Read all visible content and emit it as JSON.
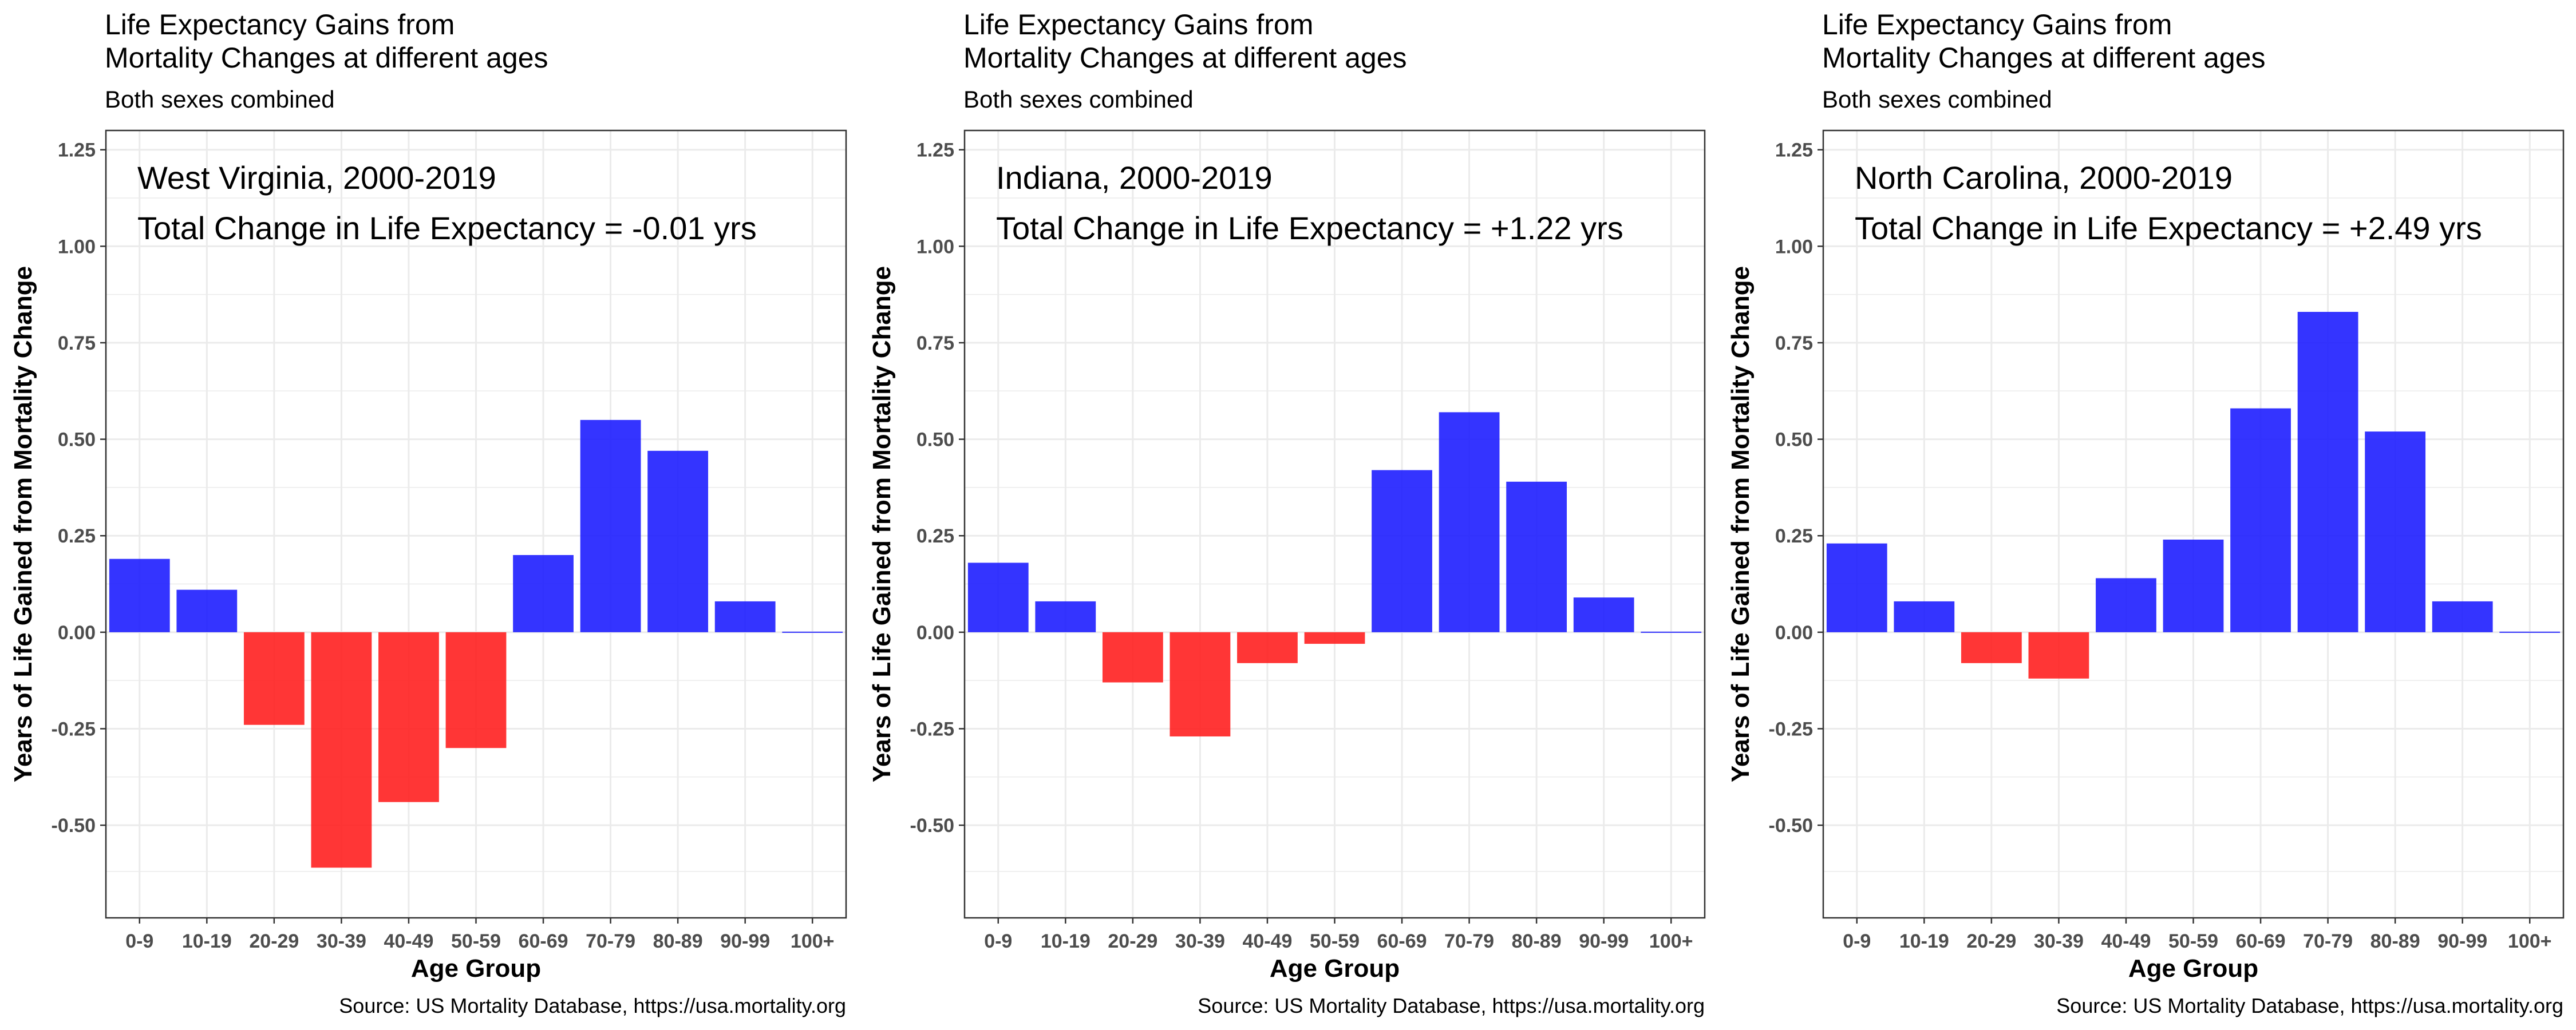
{
  "chart_data": [
    {
      "type": "bar",
      "title": "Life Expectancy Gains from\nMortality Changes at different ages",
      "subtitle": "Both sexes combined",
      "annotation": [
        "West Virginia, 2000-2019",
        "Total Change in Life Expectancy = -0.01 yrs"
      ],
      "xlabel": "Age Group",
      "ylabel": "Years of Life Gained from Mortality Change",
      "caption": "Source: US Mortality Database, https://usa.mortality.org",
      "categories": [
        "0-9",
        "10-19",
        "20-29",
        "30-39",
        "40-49",
        "50-59",
        "60-69",
        "70-79",
        "80-89",
        "90-99",
        "100+"
      ],
      "values": [
        0.19,
        0.11,
        -0.24,
        -0.61,
        -0.44,
        -0.3,
        0.2,
        0.55,
        0.47,
        0.08,
        0.0
      ],
      "ylim": [
        -0.74,
        1.3
      ],
      "yticks": [
        -0.5,
        -0.25,
        0.0,
        0.25,
        0.5,
        0.75,
        1.0,
        1.25
      ],
      "ytick_labels": [
        "-0.50",
        "-0.25",
        "0.00",
        "0.25",
        "0.50",
        "0.75",
        "1.00",
        "1.25"
      ],
      "grid": true,
      "legend": "none"
    },
    {
      "type": "bar",
      "title": "Life Expectancy Gains from\nMortality Changes at different ages",
      "subtitle": "Both sexes combined",
      "annotation": [
        "Indiana, 2000-2019",
        "Total Change in Life Expectancy = +1.22 yrs"
      ],
      "xlabel": "Age Group",
      "ylabel": "Years of Life Gained from Mortality Change",
      "caption": "Source: US Mortality Database, https://usa.mortality.org",
      "categories": [
        "0-9",
        "10-19",
        "20-29",
        "30-39",
        "40-49",
        "50-59",
        "60-69",
        "70-79",
        "80-89",
        "90-99",
        "100+"
      ],
      "values": [
        0.18,
        0.08,
        -0.13,
        -0.27,
        -0.08,
        -0.03,
        0.42,
        0.57,
        0.39,
        0.09,
        0.0
      ],
      "ylim": [
        -0.74,
        1.3
      ],
      "yticks": [
        -0.5,
        -0.25,
        0.0,
        0.25,
        0.5,
        0.75,
        1.0,
        1.25
      ],
      "ytick_labels": [
        "-0.50",
        "-0.25",
        "0.00",
        "0.25",
        "0.50",
        "0.75",
        "1.00",
        "1.25"
      ],
      "grid": true,
      "legend": "none"
    },
    {
      "type": "bar",
      "title": "Life Expectancy Gains from\nMortality Changes at different ages",
      "subtitle": "Both sexes combined",
      "annotation": [
        "North Carolina, 2000-2019",
        "Total Change in Life Expectancy = +2.49 yrs"
      ],
      "xlabel": "Age Group",
      "ylabel": "Years of Life Gained from Mortality Change",
      "caption": "Source: US Mortality Database, https://usa.mortality.org",
      "categories": [
        "0-9",
        "10-19",
        "20-29",
        "30-39",
        "40-49",
        "50-59",
        "60-69",
        "70-79",
        "80-89",
        "90-99",
        "100+"
      ],
      "values": [
        0.23,
        0.08,
        -0.08,
        -0.12,
        0.14,
        0.24,
        0.58,
        0.83,
        0.52,
        0.08,
        0.0
      ],
      "ylim": [
        -0.74,
        1.3
      ],
      "yticks": [
        -0.5,
        -0.25,
        0.0,
        0.25,
        0.5,
        0.75,
        1.0,
        1.25
      ],
      "ytick_labels": [
        "-0.50",
        "-0.25",
        "0.00",
        "0.25",
        "0.50",
        "0.75",
        "1.00",
        "1.25"
      ],
      "grid": true,
      "legend": "none"
    }
  ],
  "colors": {
    "positive": "#1E1EFF",
    "negative": "#FF2020",
    "grid": "#EBEBEB",
    "panel_border": "#333333",
    "text": "#000000",
    "tick_text": "#4D4D4D"
  }
}
